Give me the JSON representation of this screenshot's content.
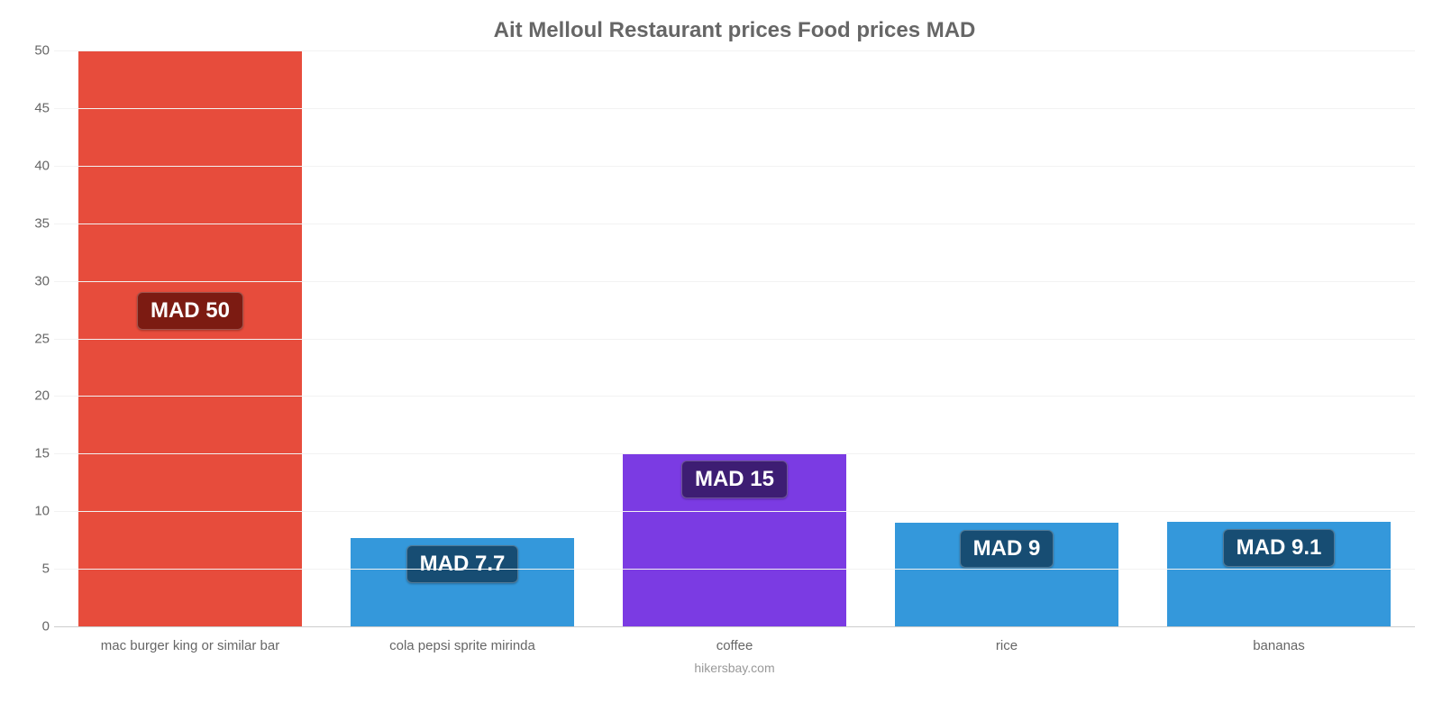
{
  "chart": {
    "type": "bar",
    "title": "Ait Melloul Restaurant prices Food prices MAD",
    "title_color": "#666666",
    "title_fontsize": 24,
    "background_color": "#ffffff",
    "grid_color": "#f2f2f2",
    "axis_color": "#cccccc",
    "tick_color": "#666666",
    "tick_fontsize": 15,
    "ylim_min": 0,
    "ylim_max": 50,
    "ytick_step": 5,
    "bar_width_pct": 82,
    "label_fontsize": 24,
    "label_text_color": "#ffffff",
    "source_text": "hikersbay.com",
    "source_color": "#999999",
    "items": [
      {
        "category": "mac burger king or similar bar",
        "value": 50,
        "display_label": "MAD 50",
        "bar_color": "#e74c3c",
        "label_bg": "#7c1b12",
        "label_outside": true
      },
      {
        "category": "cola pepsi sprite mirinda",
        "value": 7.7,
        "display_label": "MAD 7.7",
        "bar_color": "#3498db",
        "label_bg": "#174d73",
        "label_outside": false
      },
      {
        "category": "coffee",
        "value": 15,
        "display_label": "MAD 15",
        "bar_color": "#7b3be3",
        "label_bg": "#3d1d73",
        "label_outside": false
      },
      {
        "category": "rice",
        "value": 9,
        "display_label": "MAD 9",
        "bar_color": "#3498db",
        "label_bg": "#174d73",
        "label_outside": false
      },
      {
        "category": "bananas",
        "value": 9.1,
        "display_label": "MAD 9.1",
        "bar_color": "#3498db",
        "label_bg": "#174d73",
        "label_outside": false
      }
    ]
  }
}
